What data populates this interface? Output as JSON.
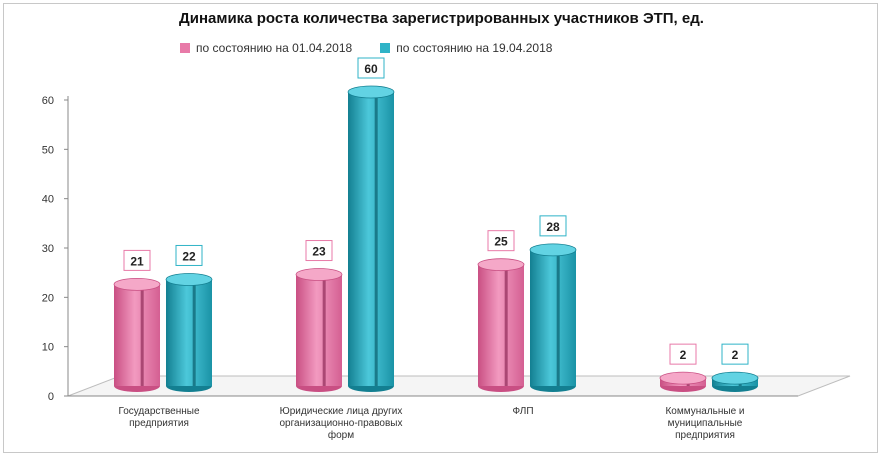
{
  "chart_data": {
    "type": "bar",
    "title": "Динамика роста количества зарегистрированных участников ЭТП, ед.",
    "categories": [
      [
        "Государственные",
        "предприятия"
      ],
      [
        "Юридические лица других",
        "организационно-правовых",
        "форм"
      ],
      [
        "ФЛП"
      ],
      [
        "Коммунальные и",
        "муниципальные",
        "предприятия"
      ]
    ],
    "series": [
      {
        "name": "по состоянию на 01.04.2018",
        "values": [
          21,
          23,
          25,
          2
        ],
        "color": "#e87aa8"
      },
      {
        "name": "по состоянию на 19.04.2018",
        "values": [
          22,
          60,
          28,
          2
        ],
        "color": "#2fb3c7"
      }
    ],
    "ylim": [
      0,
      60
    ],
    "yticks": [
      "0",
      "10",
      "20",
      "30",
      "40",
      "50",
      "60"
    ],
    "xlabel": "",
    "ylabel": "",
    "legend_position": "top",
    "grid": false
  }
}
